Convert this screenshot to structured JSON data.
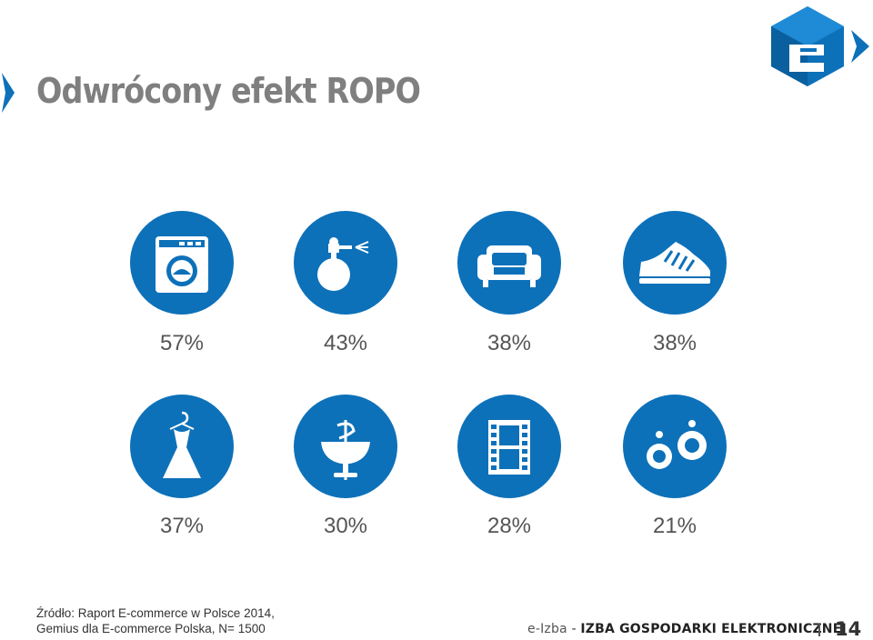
{
  "slide": {
    "title": "Odwrócony efekt ROPO",
    "accent_color": "#0d71b9"
  },
  "categories": [
    {
      "icon": "washing-machine-icon",
      "percent": "57%"
    },
    {
      "icon": "perfume-icon",
      "percent": "43%"
    },
    {
      "icon": "sofa-icon",
      "percent": "38%"
    },
    {
      "icon": "sneaker-icon",
      "percent": "38%"
    },
    {
      "icon": "dress-icon",
      "percent": "37%"
    },
    {
      "icon": "pharmacy-icon",
      "percent": "30%"
    },
    {
      "icon": "film-icon",
      "percent": "28%"
    },
    {
      "icon": "earrings-icon",
      "percent": "21%"
    }
  ],
  "source": {
    "line1": "Źródło: Raport E-commerce w Polsce 2014,",
    "line2": "Gemius dla E-commerce Polska, N= 1500"
  },
  "footer": {
    "brand": "e-Izba",
    "separator": " - ",
    "org": "IZBA GOSPODARKI ELEKTRONICZNEJ",
    "page_number": "14"
  }
}
